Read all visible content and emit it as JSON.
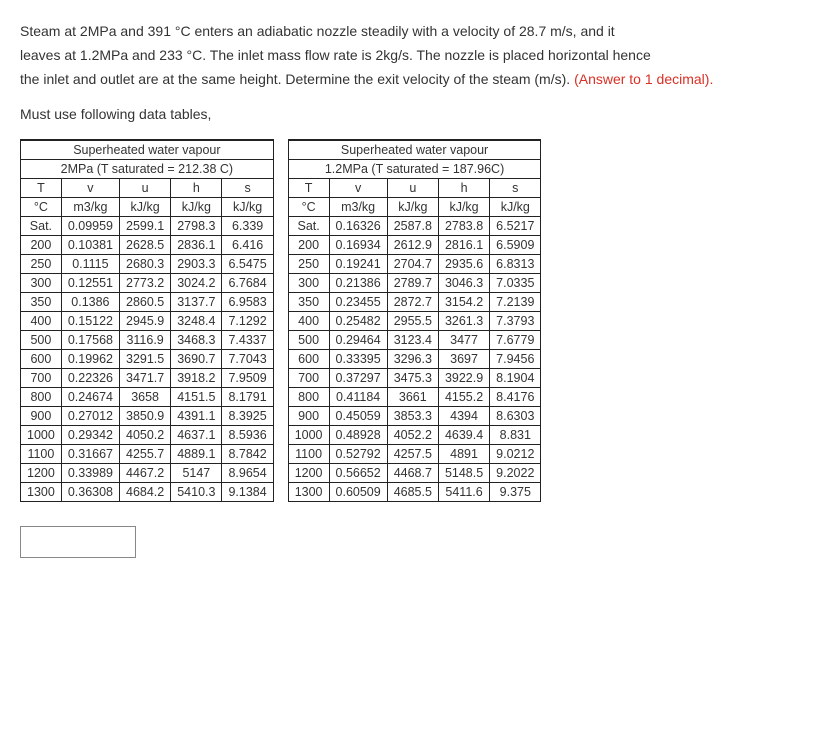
{
  "problem": {
    "line1": "Steam at 2MPa and 391 °C enters an adiabatic nozzle steadily with a velocity of 28.7 m/s, and it",
    "line2": "leaves at 1.2MPa and 233 °C. The inlet mass flow rate is 2kg/s. The nozzle is placed horizontal hence",
    "line3": "the inlet and outlet are at the same height. Determine the exit velocity of the steam (m/s).",
    "answer_hint": "(Answer to 1 decimal).",
    "must_use": "Must use following data tables,"
  },
  "table_left": {
    "title1": "Superheated water vapour",
    "title2": "2MPa (T saturated = 212.38 C)",
    "headers1": [
      "T",
      "v",
      "u",
      "h",
      "s"
    ],
    "headers2": [
      "°C",
      "m3/kg",
      "kJ/kg",
      "kJ/kg",
      "kJ/kg"
    ],
    "rows": [
      [
        "Sat.",
        "0.09959",
        "2599.1",
        "2798.3",
        "6.339"
      ],
      [
        "200",
        "0.10381",
        "2628.5",
        "2836.1",
        "6.416"
      ],
      [
        "250",
        "0.1115",
        "2680.3",
        "2903.3",
        "6.5475"
      ],
      [
        "300",
        "0.12551",
        "2773.2",
        "3024.2",
        "6.7684"
      ],
      [
        "350",
        "0.1386",
        "2860.5",
        "3137.7",
        "6.9583"
      ],
      [
        "400",
        "0.15122",
        "2945.9",
        "3248.4",
        "7.1292"
      ],
      [
        "500",
        "0.17568",
        "3116.9",
        "3468.3",
        "7.4337"
      ],
      [
        "600",
        "0.19962",
        "3291.5",
        "3690.7",
        "7.7043"
      ],
      [
        "700",
        "0.22326",
        "3471.7",
        "3918.2",
        "7.9509"
      ],
      [
        "800",
        "0.24674",
        "3658",
        "4151.5",
        "8.1791"
      ],
      [
        "900",
        "0.27012",
        "3850.9",
        "4391.1",
        "8.3925"
      ],
      [
        "1000",
        "0.29342",
        "4050.2",
        "4637.1",
        "8.5936"
      ],
      [
        "1100",
        "0.31667",
        "4255.7",
        "4889.1",
        "8.7842"
      ],
      [
        "1200",
        "0.33989",
        "4467.2",
        "5147",
        "8.9654"
      ],
      [
        "1300",
        "0.36308",
        "4684.2",
        "5410.3",
        "9.1384"
      ]
    ]
  },
  "table_right": {
    "title1": "Superheated water vapour",
    "title2": "1.2MPa (T saturated = 187.96C)",
    "headers1": [
      "T",
      "v",
      "u",
      "h",
      "s"
    ],
    "headers2": [
      "°C",
      "m3/kg",
      "kJ/kg",
      "kJ/kg",
      "kJ/kg"
    ],
    "rows": [
      [
        "Sat.",
        "0.16326",
        "2587.8",
        "2783.8",
        "6.5217"
      ],
      [
        "200",
        "0.16934",
        "2612.9",
        "2816.1",
        "6.5909"
      ],
      [
        "250",
        "0.19241",
        "2704.7",
        "2935.6",
        "6.8313"
      ],
      [
        "300",
        "0.21386",
        "2789.7",
        "3046.3",
        "7.0335"
      ],
      [
        "350",
        "0.23455",
        "2872.7",
        "3154.2",
        "7.2139"
      ],
      [
        "400",
        "0.25482",
        "2955.5",
        "3261.3",
        "7.3793"
      ],
      [
        "500",
        "0.29464",
        "3123.4",
        "3477",
        "7.6779"
      ],
      [
        "600",
        "0.33395",
        "3296.3",
        "3697",
        "7.9456"
      ],
      [
        "700",
        "0.37297",
        "3475.3",
        "3922.9",
        "8.1904"
      ],
      [
        "800",
        "0.41184",
        "3661",
        "4155.2",
        "8.4176"
      ],
      [
        "900",
        "0.45059",
        "3853.3",
        "4394",
        "8.6303"
      ],
      [
        "1000",
        "0.48928",
        "4052.2",
        "4639.4",
        "8.831"
      ],
      [
        "1100",
        "0.52792",
        "4257.5",
        "4891",
        "9.0212"
      ],
      [
        "1200",
        "0.56652",
        "4468.7",
        "5148.5",
        "9.2022"
      ],
      [
        "1300",
        "0.60509",
        "4685.5",
        "5411.6",
        "9.375"
      ]
    ]
  }
}
